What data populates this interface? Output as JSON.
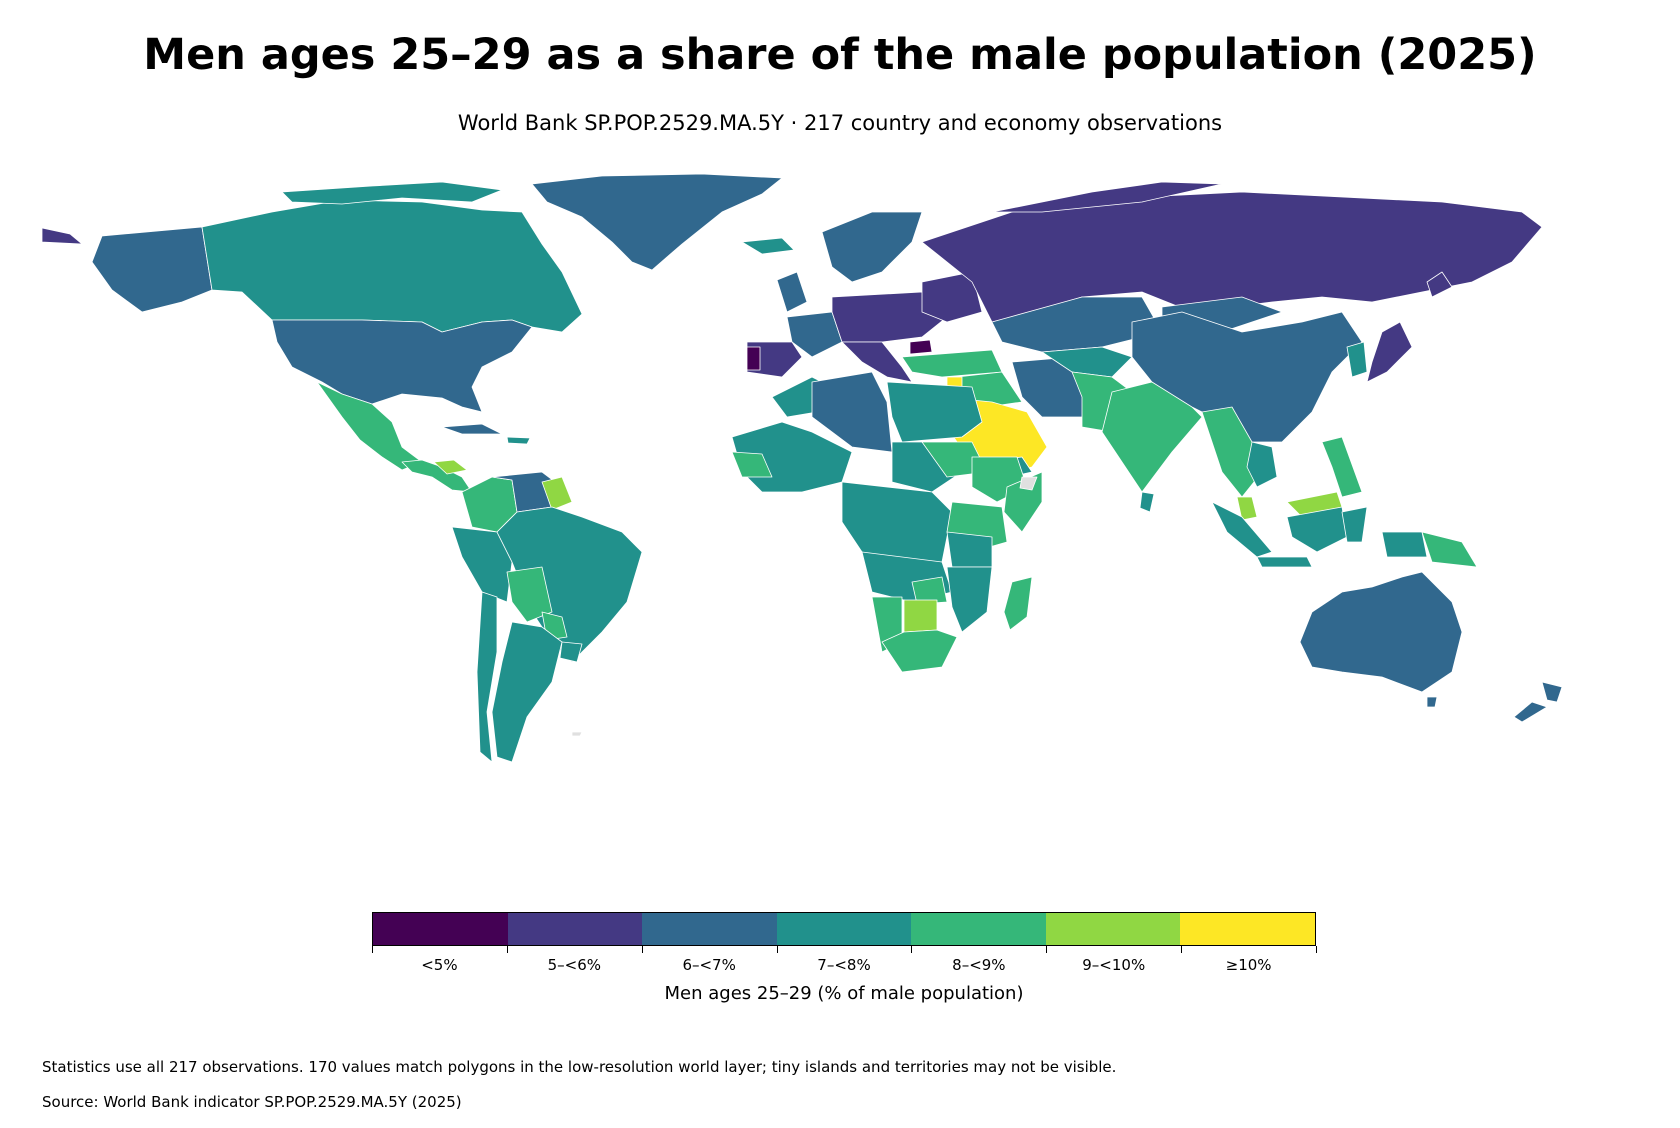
{
  "title": "Men ages 25–29 as a share of the male population (2025)",
  "subtitle": "World Bank SP.POP.2529.MA.5Y · 217 country and economy observations",
  "legend": {
    "title": "Men ages 25–29 (% of male population)",
    "bins": [
      {
        "label": "<5%",
        "color": "#440154"
      },
      {
        "label": "5–<6%",
        "color": "#443983"
      },
      {
        "label": "6–<7%",
        "color": "#31688e"
      },
      {
        "label": "7–<8%",
        "color": "#21918c"
      },
      {
        "label": "8–<9%",
        "color": "#35b779"
      },
      {
        "label": "9–<10%",
        "color": "#90d743"
      },
      {
        "label": "≥10%",
        "color": "#fde725"
      }
    ]
  },
  "note": "Statistics use all 217 observations. 170 values match polygons in the low-resolution world layer; tiny islands and territories may not be visible.",
  "source": "Source: World Bank indicator SP.POP.2529.MA.5Y (2025)"
}
